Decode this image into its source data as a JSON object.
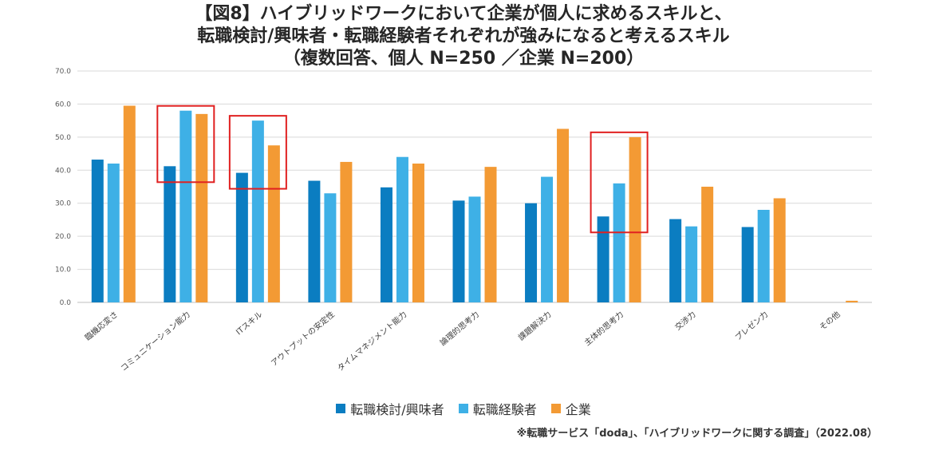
{
  "title": {
    "line1": "【図8】ハイブリッドワークにおいて企業が個人に求めるスキルと、",
    "line2": "転職検討/興味者・転職経験者それぞれが強みになると考えるスキル",
    "line3": "（複数回答、個人 N=250 ／企業 N=200）"
  },
  "source": "※転職サービス「doda」、「ハイブリッドワークに関する調査」（2022.08）",
  "colors": {
    "series1": "#0B7DC1",
    "series2": "#3EB0E6",
    "series3": "#F39A34",
    "highlight": "#E02020",
    "grid": "#D9D9D9"
  },
  "chart_data": {
    "type": "bar",
    "title": "（複数回答、個人 N=250 ／企業 N=200）",
    "ylim": [
      0,
      70
    ],
    "yticks": [
      "0.0",
      "10.0",
      "20.0",
      "30.0",
      "40.0",
      "50.0",
      "60.0",
      "70.0"
    ],
    "grid": true,
    "legend_position": "bottom",
    "categories": [
      "臨機応変さ",
      "コミュニケーション能力",
      "ITスキル",
      "アウトプットの安定性",
      "タイムマネジメント能力",
      "論理的思考力",
      "課題解決力",
      "主体的思考力",
      "交渉力",
      "プレゼン力",
      "その他"
    ],
    "series": [
      {
        "name": "転職検討/興味者",
        "values": [
          43.2,
          41.2,
          39.2,
          36.8,
          34.8,
          30.8,
          30.0,
          26.0,
          25.2,
          22.8,
          0
        ]
      },
      {
        "name": "転職経験者",
        "values": [
          42.0,
          58.0,
          55.0,
          33.0,
          44.0,
          32.0,
          38.0,
          36.0,
          23.0,
          28.0,
          0
        ]
      },
      {
        "name": "企業",
        "values": [
          59.5,
          57.0,
          47.5,
          42.5,
          42.0,
          41.0,
          52.5,
          50.0,
          35.0,
          31.5,
          0.5
        ]
      }
    ],
    "highlighted_categories": [
      "コミュニケーション能力",
      "ITスキル",
      "主体的思考力"
    ]
  }
}
